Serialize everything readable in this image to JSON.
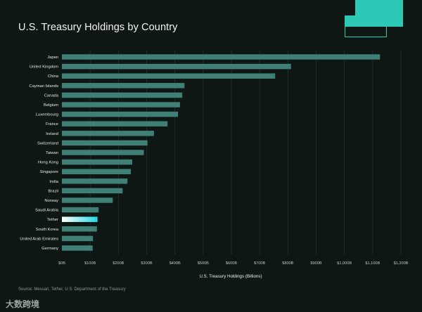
{
  "title": "U.S. Treasury Holdings by Country",
  "source": "Source: Messari, Tether, U.S. Department of the Treasury",
  "watermark": "大数跨境",
  "colors": {
    "background": "#0f1715",
    "bar": "#3f7f76",
    "highlight_start": "#ffffff",
    "highlight_end": "#27d6e0",
    "grid": "#24312e",
    "accent": "#2ec9b6"
  },
  "chart_data": {
    "type": "bar",
    "orientation": "horizontal",
    "title": "U.S. Treasury Holdings by Country",
    "xlabel": "U.S. Treasury Holdings (Billions)",
    "ylabel": "",
    "xlim": [
      0,
      1200
    ],
    "x_ticks": [
      0,
      100,
      200,
      300,
      400,
      500,
      600,
      700,
      800,
      900,
      1000,
      1100,
      1200
    ],
    "x_tick_labels": [
      "$0B",
      "$100B",
      "$200B",
      "$300B",
      "$400B",
      "$500B",
      "$600B",
      "$700B",
      "$800B",
      "$900B",
      "$1,000B",
      "$1,100B",
      "$1,200B"
    ],
    "grid": true,
    "categories": [
      "Japan",
      "United Kingdom",
      "China",
      "Cayman Islands",
      "Canada",
      "Belgium",
      "Luxembourg",
      "France",
      "Ireland",
      "Switzerland",
      "Taiwan",
      "Hong Kong",
      "Singapore",
      "India",
      "Brazil",
      "Norway",
      "Saudi Arabia",
      "Tether",
      "South Korea",
      "United Arab Emirates",
      "Germany"
    ],
    "values": [
      1126,
      811,
      755,
      434,
      426,
      418,
      411,
      374,
      326,
      303,
      290,
      249,
      244,
      232,
      215,
      180,
      130,
      126,
      124,
      110,
      109
    ],
    "highlight": "Tether"
  }
}
